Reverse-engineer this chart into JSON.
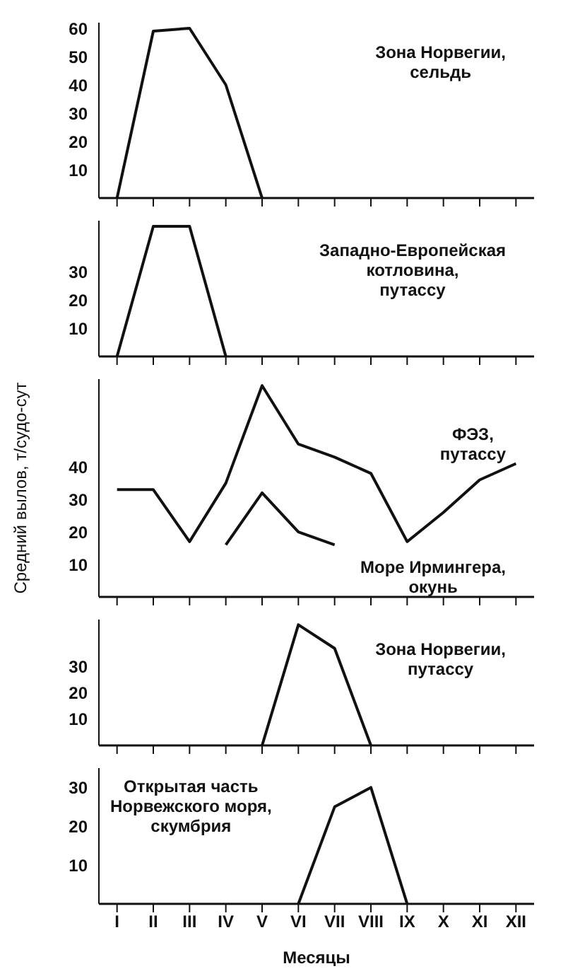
{
  "chart_data": [
    {
      "type": "line",
      "title": "Зона Норвегии,\nсельдь",
      "categories": [
        null,
        null,
        null,
        null,
        null,
        null,
        null,
        null,
        null,
        null,
        null,
        null
      ],
      "series": [
        {
          "color": "#111111",
          "values": [
            0,
            59,
            60,
            40,
            0,
            null,
            null,
            null,
            null,
            null,
            null,
            null
          ]
        }
      ],
      "ylim": [
        0,
        62
      ],
      "yticks": [
        10,
        20,
        30,
        40,
        50,
        60
      ],
      "tick_labels": "y",
      "grid": false,
      "legend": false,
      "marker": "none",
      "line_style": "solid"
    },
    {
      "type": "line",
      "title": "Западно-Европейская\nкотловина,\nпутассу",
      "categories": [
        null,
        null,
        null,
        null,
        null,
        null,
        null,
        null,
        null,
        null,
        null,
        null
      ],
      "series": [
        {
          "color": "#111111",
          "values": [
            0,
            46,
            46,
            0,
            null,
            null,
            null,
            null,
            null,
            null,
            null,
            null
          ]
        }
      ],
      "ylim": [
        0,
        48
      ],
      "yticks": [
        10,
        20,
        30
      ],
      "tick_labels": "y",
      "grid": false,
      "legend": false,
      "marker": "none",
      "line_style": "solid"
    },
    {
      "type": "line",
      "ylabel": "Средний вылов, т/судо-сут",
      "categories": [
        null,
        null,
        null,
        null,
        null,
        null,
        null,
        null,
        null,
        null,
        null,
        null
      ],
      "series": [
        {
          "name": "ФЭЗ,\nпутассу",
          "color": "#111111",
          "values": [
            33,
            33,
            17,
            35,
            65,
            47,
            43,
            38,
            17,
            26,
            36,
            41
          ]
        },
        {
          "name": "Море Ирмингера,\nокунь",
          "color": "#111111",
          "values": [
            null,
            null,
            null,
            16,
            32,
            20,
            16,
            null,
            null,
            null,
            null,
            null
          ]
        }
      ],
      "ylim": [
        0,
        67
      ],
      "yticks": [
        10,
        20,
        30,
        40
      ],
      "tick_labels": "y",
      "grid": false,
      "legend": false,
      "marker": "none",
      "line_style": "solid"
    },
    {
      "type": "line",
      "title": "Зона Норвегии,\nпутассу",
      "categories": [
        null,
        null,
        null,
        null,
        null,
        null,
        null,
        null,
        null,
        null,
        null,
        null
      ],
      "series": [
        {
          "color": "#111111",
          "values": [
            null,
            null,
            null,
            null,
            0,
            46,
            37,
            0,
            null,
            null,
            null,
            null
          ]
        }
      ],
      "ylim": [
        0,
        48
      ],
      "yticks": [
        10,
        20,
        30
      ],
      "tick_labels": "y",
      "grid": false,
      "legend": false,
      "marker": "none",
      "line_style": "solid"
    },
    {
      "type": "line",
      "title": "Открытая часть\nНорвежского моря,\nскумбрия",
      "xlabel": "Месяцы",
      "categories": [
        "I",
        "II",
        "III",
        "IV",
        "V",
        "VI",
        "VII",
        "VIII",
        "IX",
        "X",
        "XI",
        "XII"
      ],
      "series": [
        {
          "color": "#111111",
          "values": [
            null,
            null,
            null,
            null,
            null,
            0,
            25,
            30,
            0,
            null,
            null,
            null
          ]
        }
      ],
      "ylim": [
        0,
        35
      ],
      "yticks": [
        10,
        20,
        30
      ],
      "grid": false,
      "legend": false,
      "marker": "none",
      "line_style": "solid"
    }
  ]
}
